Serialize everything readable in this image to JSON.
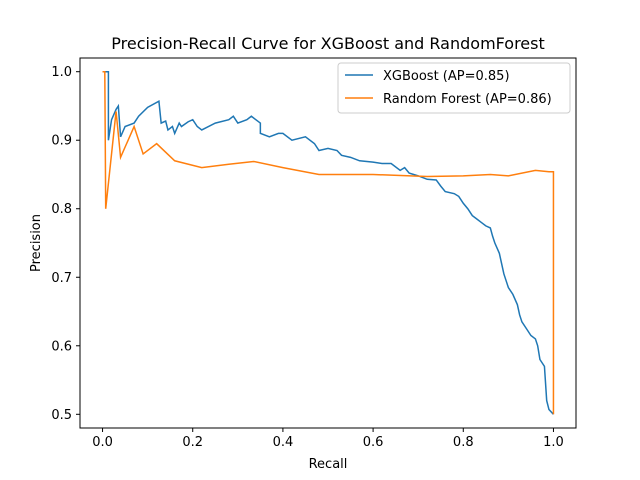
{
  "chart_data": {
    "type": "line",
    "title": "Precision-Recall Curve for XGBoost and RandomForest",
    "xlabel": "Recall",
    "ylabel": "Precision",
    "xlim": [
      -0.05,
      1.05
    ],
    "ylim": [
      0.48,
      1.02
    ],
    "xticks": [
      0.0,
      0.2,
      0.4,
      0.6,
      0.8,
      1.0
    ],
    "xtick_labels": [
      "0.0",
      "0.2",
      "0.4",
      "0.6",
      "0.8",
      "1.0"
    ],
    "yticks": [
      0.5,
      0.6,
      0.7,
      0.8,
      0.9,
      1.0
    ],
    "ytick_labels": [
      "0.5",
      "0.6",
      "0.7",
      "0.8",
      "0.9",
      "1.0"
    ],
    "grid": false,
    "legend_position": "top-right",
    "series": [
      {
        "name": "XGBoost (AP=0.85)",
        "color": "#1f77b4",
        "points": [
          [
            0.0,
            1.0
          ],
          [
            0.013,
            1.0
          ],
          [
            0.013,
            0.9
          ],
          [
            0.02,
            0.93
          ],
          [
            0.03,
            0.945
          ],
          [
            0.035,
            0.95
          ],
          [
            0.04,
            0.905
          ],
          [
            0.05,
            0.92
          ],
          [
            0.07,
            0.925
          ],
          [
            0.08,
            0.935
          ],
          [
            0.1,
            0.948
          ],
          [
            0.125,
            0.957
          ],
          [
            0.13,
            0.925
          ],
          [
            0.14,
            0.928
          ],
          [
            0.145,
            0.915
          ],
          [
            0.155,
            0.92
          ],
          [
            0.16,
            0.91
          ],
          [
            0.17,
            0.925
          ],
          [
            0.175,
            0.92
          ],
          [
            0.19,
            0.927
          ],
          [
            0.2,
            0.93
          ],
          [
            0.21,
            0.92
          ],
          [
            0.22,
            0.915
          ],
          [
            0.25,
            0.925
          ],
          [
            0.28,
            0.93
          ],
          [
            0.29,
            0.935
          ],
          [
            0.3,
            0.925
          ],
          [
            0.32,
            0.93
          ],
          [
            0.33,
            0.935
          ],
          [
            0.35,
            0.925
          ],
          [
            0.35,
            0.91
          ],
          [
            0.37,
            0.905
          ],
          [
            0.39,
            0.91
          ],
          [
            0.4,
            0.91
          ],
          [
            0.42,
            0.9
          ],
          [
            0.45,
            0.905
          ],
          [
            0.47,
            0.895
          ],
          [
            0.48,
            0.885
          ],
          [
            0.5,
            0.888
          ],
          [
            0.52,
            0.885
          ],
          [
            0.53,
            0.878
          ],
          [
            0.55,
            0.875
          ],
          [
            0.57,
            0.87
          ],
          [
            0.6,
            0.868
          ],
          [
            0.62,
            0.866
          ],
          [
            0.64,
            0.866
          ],
          [
            0.66,
            0.856
          ],
          [
            0.67,
            0.86
          ],
          [
            0.68,
            0.852
          ],
          [
            0.7,
            0.848
          ],
          [
            0.72,
            0.843
          ],
          [
            0.74,
            0.842
          ],
          [
            0.75,
            0.833
          ],
          [
            0.76,
            0.825
          ],
          [
            0.78,
            0.822
          ],
          [
            0.79,
            0.818
          ],
          [
            0.8,
            0.808
          ],
          [
            0.81,
            0.8
          ],
          [
            0.82,
            0.79
          ],
          [
            0.83,
            0.785
          ],
          [
            0.84,
            0.78
          ],
          [
            0.85,
            0.775
          ],
          [
            0.86,
            0.772
          ],
          [
            0.865,
            0.76
          ],
          [
            0.87,
            0.75
          ],
          [
            0.88,
            0.735
          ],
          [
            0.885,
            0.72
          ],
          [
            0.89,
            0.705
          ],
          [
            0.895,
            0.695
          ],
          [
            0.9,
            0.685
          ],
          [
            0.91,
            0.675
          ],
          [
            0.92,
            0.66
          ],
          [
            0.925,
            0.645
          ],
          [
            0.93,
            0.635
          ],
          [
            0.94,
            0.625
          ],
          [
            0.95,
            0.615
          ],
          [
            0.96,
            0.61
          ],
          [
            0.965,
            0.6
          ],
          [
            0.97,
            0.58
          ],
          [
            0.98,
            0.57
          ],
          [
            0.985,
            0.52
          ],
          [
            0.99,
            0.507
          ],
          [
            1.0,
            0.5
          ]
        ]
      },
      {
        "name": "Random Forest (AP=0.86)",
        "color": "#ff7f0e",
        "points": [
          [
            0.0,
            1.0
          ],
          [
            0.005,
            1.0
          ],
          [
            0.007,
            0.8
          ],
          [
            0.03,
            0.942
          ],
          [
            0.04,
            0.875
          ],
          [
            0.07,
            0.92
          ],
          [
            0.09,
            0.88
          ],
          [
            0.12,
            0.895
          ],
          [
            0.16,
            0.87
          ],
          [
            0.22,
            0.86
          ],
          [
            0.28,
            0.865
          ],
          [
            0.335,
            0.869
          ],
          [
            0.4,
            0.86
          ],
          [
            0.48,
            0.85
          ],
          [
            0.6,
            0.85
          ],
          [
            0.72,
            0.847
          ],
          [
            0.8,
            0.848
          ],
          [
            0.86,
            0.85
          ],
          [
            0.9,
            0.848
          ],
          [
            0.96,
            0.856
          ],
          [
            0.99,
            0.854
          ],
          [
            1.0,
            0.854
          ],
          [
            1.0,
            0.5
          ]
        ]
      }
    ]
  }
}
